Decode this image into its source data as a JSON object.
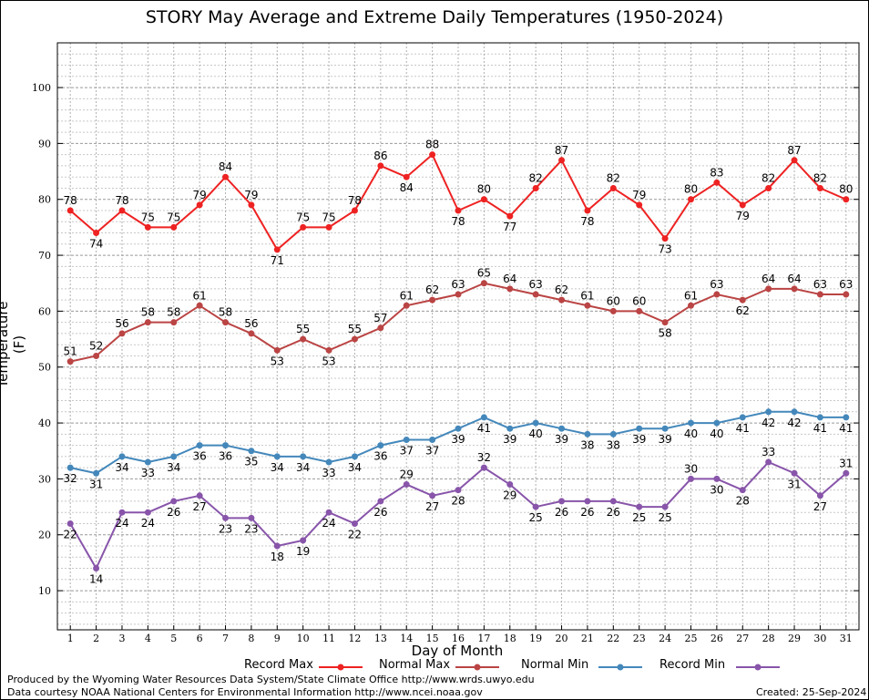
{
  "chart_data": {
    "type": "line",
    "title": "STORY May Average and Extreme Daily Temperatures (1950-2024)",
    "xlabel": "Day of Month",
    "ylabel": "Temperature (F)",
    "x": [
      1,
      2,
      3,
      4,
      5,
      6,
      7,
      8,
      9,
      10,
      11,
      12,
      13,
      14,
      15,
      16,
      17,
      18,
      19,
      20,
      21,
      22,
      23,
      24,
      25,
      26,
      27,
      28,
      29,
      30,
      31
    ],
    "xlim": [
      0.5,
      31.5
    ],
    "ylim": [
      3,
      108
    ],
    "yticks": [
      10,
      20,
      30,
      40,
      50,
      60,
      70,
      80,
      90,
      100
    ],
    "grid": true,
    "legend_position": "bottom",
    "series": [
      {
        "name": "Record Max",
        "color": "#ee2222",
        "values": [
          78,
          74,
          78,
          75,
          75,
          79,
          84,
          79,
          71,
          75,
          75,
          78,
          86,
          84,
          88,
          78,
          80,
          77,
          82,
          87,
          78,
          82,
          79,
          73,
          80,
          83,
          79,
          82,
          87,
          82,
          80
        ]
      },
      {
        "name": "Normal Max",
        "color": "#bb4444",
        "values": [
          51,
          52,
          56,
          58,
          58,
          61,
          58,
          56,
          53,
          55,
          53,
          55,
          57,
          61,
          62,
          63,
          65,
          64,
          63,
          62,
          61,
          60,
          60,
          58,
          61,
          63,
          62,
          64,
          64,
          63,
          63
        ]
      },
      {
        "name": "Normal Min",
        "color": "#4488bb",
        "values": [
          32,
          31,
          34,
          33,
          34,
          36,
          36,
          35,
          34,
          34,
          33,
          34,
          36,
          37,
          37,
          39,
          41,
          39,
          40,
          39,
          38,
          38,
          39,
          39,
          40,
          40,
          41,
          42,
          42,
          41,
          41
        ]
      },
      {
        "name": "Record Min",
        "color": "#8855aa",
        "values": [
          22,
          14,
          24,
          24,
          26,
          27,
          23,
          23,
          18,
          19,
          24,
          22,
          26,
          29,
          27,
          28,
          32,
          29,
          25,
          26,
          26,
          26,
          25,
          25,
          30,
          30,
          28,
          33,
          31,
          27,
          31
        ]
      }
    ]
  },
  "footer": {
    "line1": "Produced by the Wyoming Water Resources Data System/State Climate Office http://www.wrds.uwyo.edu",
    "line2": "Data courtesy NOAA National Centers for Environmental Information http://www.ncei.noaa.gov",
    "created": "Created:  25-Sep-2024"
  }
}
